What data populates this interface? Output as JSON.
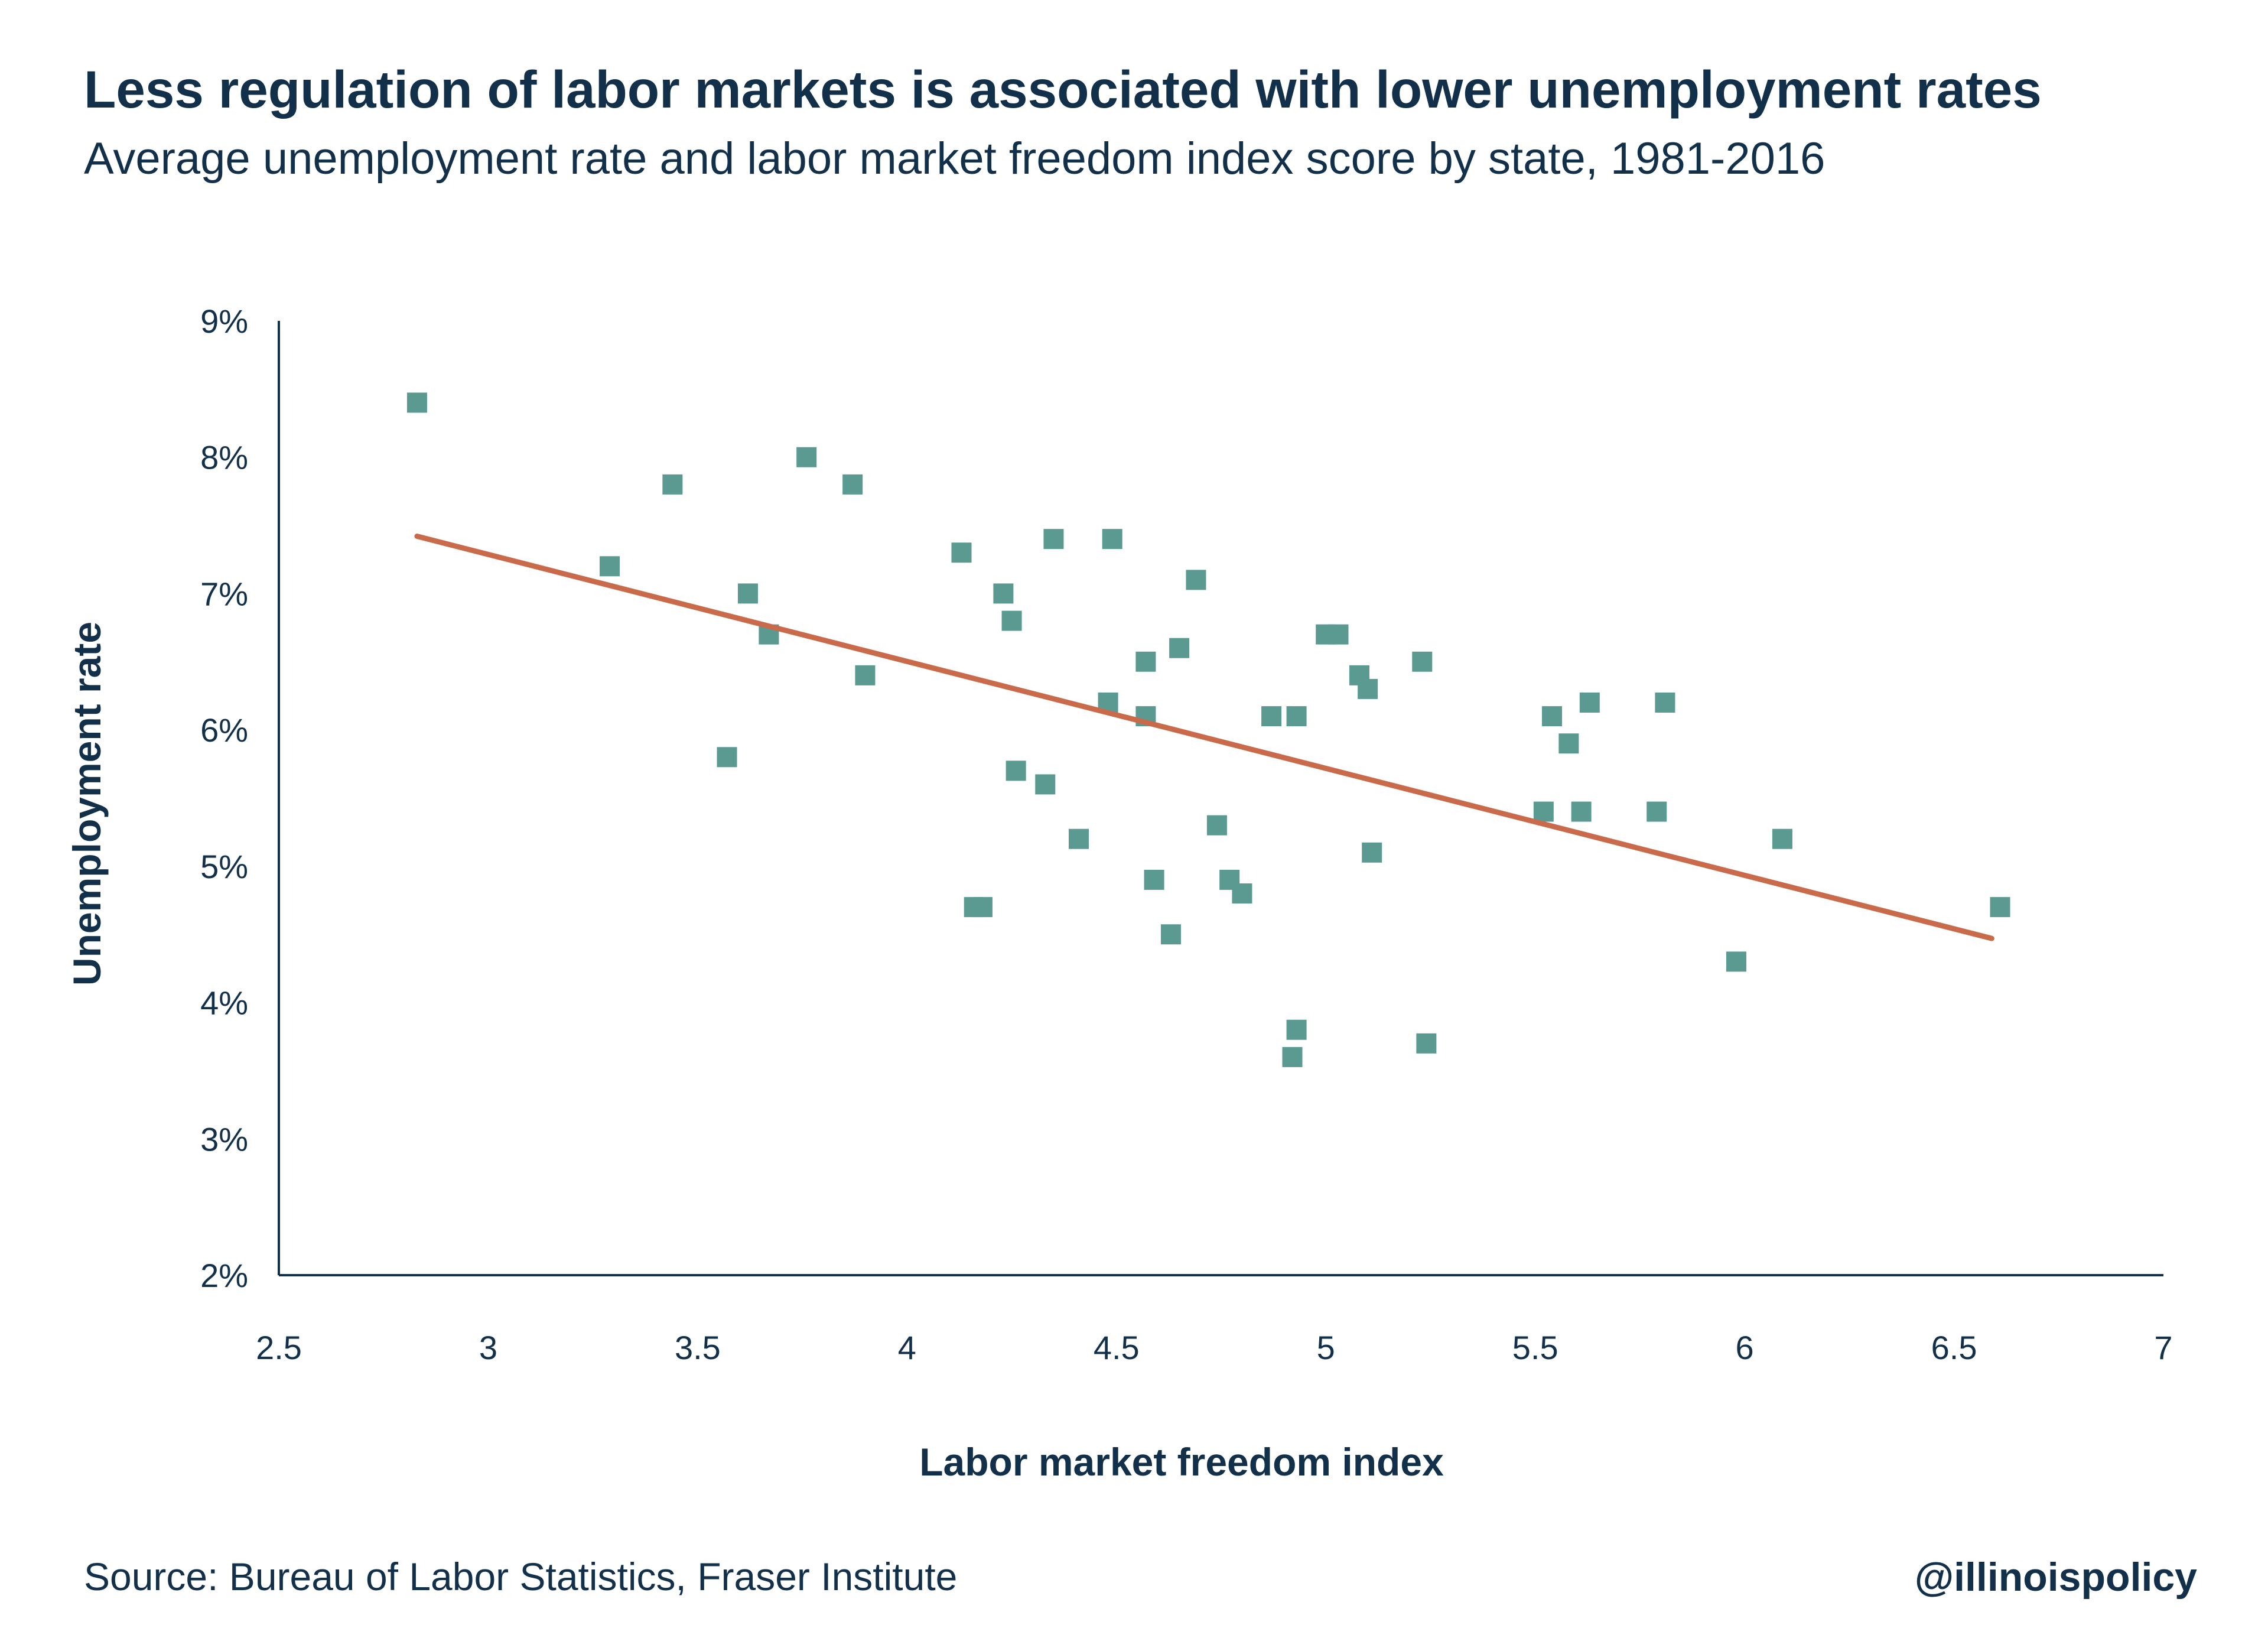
{
  "chart_data": {
    "type": "scatter",
    "title": "Less regulation of labor markets is associated with lower unemployment rates",
    "subtitle": "Average unemployment rate and labor market freedom index score by state, 1981-2016",
    "xlabel": "Labor market freedom index",
    "ylabel": "Unemployment rate",
    "xlim": [
      2.5,
      7
    ],
    "ylim": [
      2,
      9
    ],
    "x_ticks": [
      2.5,
      3,
      3.5,
      4,
      4.5,
      5,
      5.5,
      6,
      6.5,
      7
    ],
    "x_tick_labels": [
      "2.5",
      "3",
      "3.5",
      "4",
      "4.5",
      "5",
      "5.5",
      "6",
      "6.5",
      "7"
    ],
    "y_ticks": [
      2,
      3,
      4,
      5,
      6,
      7,
      8,
      9
    ],
    "y_tick_labels": [
      "2%",
      "3%",
      "4%",
      "5%",
      "6%",
      "7%",
      "8%",
      "9%"
    ],
    "grid": false,
    "marker": "square",
    "point_color": "#5a9a91",
    "trend_color": "#c96b4a",
    "axis_color": "#13304a",
    "points": [
      {
        "x": 2.83,
        "y": 8.4
      },
      {
        "x": 3.29,
        "y": 7.2
      },
      {
        "x": 3.44,
        "y": 7.8
      },
      {
        "x": 3.57,
        "y": 5.8
      },
      {
        "x": 3.62,
        "y": 7.0
      },
      {
        "x": 3.67,
        "y": 6.7
      },
      {
        "x": 3.76,
        "y": 8.0
      },
      {
        "x": 3.87,
        "y": 7.8
      },
      {
        "x": 3.9,
        "y": 6.4
      },
      {
        "x": 4.13,
        "y": 7.3
      },
      {
        "x": 4.16,
        "y": 4.7
      },
      {
        "x": 4.18,
        "y": 4.7
      },
      {
        "x": 4.23,
        "y": 7.0
      },
      {
        "x": 4.25,
        "y": 6.8
      },
      {
        "x": 4.26,
        "y": 5.7
      },
      {
        "x": 4.33,
        "y": 5.6
      },
      {
        "x": 4.35,
        "y": 7.4
      },
      {
        "x": 4.41,
        "y": 5.2
      },
      {
        "x": 4.48,
        "y": 6.2
      },
      {
        "x": 4.49,
        "y": 7.4
      },
      {
        "x": 4.57,
        "y": 6.5
      },
      {
        "x": 4.57,
        "y": 6.1
      },
      {
        "x": 4.59,
        "y": 4.9
      },
      {
        "x": 4.63,
        "y": 4.5
      },
      {
        "x": 4.65,
        "y": 6.6
      },
      {
        "x": 4.69,
        "y": 7.1
      },
      {
        "x": 4.74,
        "y": 5.3
      },
      {
        "x": 4.77,
        "y": 4.9
      },
      {
        "x": 4.8,
        "y": 4.8
      },
      {
        "x": 4.87,
        "y": 6.1
      },
      {
        "x": 4.92,
        "y": 3.6
      },
      {
        "x": 4.93,
        "y": 6.1
      },
      {
        "x": 4.93,
        "y": 3.8
      },
      {
        "x": 5.0,
        "y": 6.7
      },
      {
        "x": 5.03,
        "y": 6.7
      },
      {
        "x": 5.08,
        "y": 6.4
      },
      {
        "x": 5.1,
        "y": 6.3
      },
      {
        "x": 5.11,
        "y": 5.1
      },
      {
        "x": 5.23,
        "y": 6.5
      },
      {
        "x": 5.24,
        "y": 3.7
      },
      {
        "x": 5.52,
        "y": 5.4
      },
      {
        "x": 5.54,
        "y": 6.1
      },
      {
        "x": 5.58,
        "y": 5.9
      },
      {
        "x": 5.61,
        "y": 5.4
      },
      {
        "x": 5.63,
        "y": 6.2
      },
      {
        "x": 5.79,
        "y": 5.4
      },
      {
        "x": 5.81,
        "y": 6.2
      },
      {
        "x": 5.98,
        "y": 4.3
      },
      {
        "x": 6.09,
        "y": 5.2
      },
      {
        "x": 6.61,
        "y": 4.7
      }
    ],
    "trendline": {
      "x": [
        2.83,
        6.59
      ],
      "y": [
        7.42,
        4.47
      ]
    }
  },
  "footer": {
    "source": "Source: Bureau of Labor Statistics, Fraser Institute",
    "handle": "@illinoispolicy"
  }
}
